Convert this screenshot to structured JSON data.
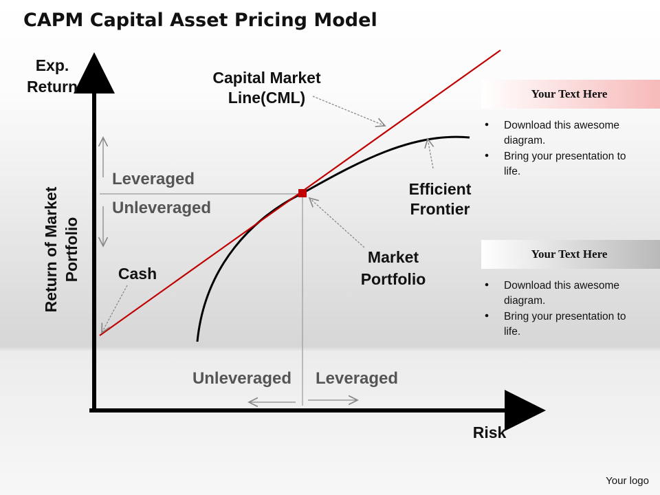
{
  "title": "CAPM Capital Asset Pricing Model",
  "y_axis_label": [
    "Exp.",
    "Return"
  ],
  "y_axis_side_label": [
    "Return of Market",
    "Portfolio"
  ],
  "x_axis_label": "Risk",
  "cml_label": [
    "Capital Market",
    "Line(CML)"
  ],
  "frontier_label": [
    "Efficient",
    "Frontier"
  ],
  "market_label": [
    "Market",
    "Portfolio"
  ],
  "cash_label": "Cash",
  "vertical_labels": {
    "leveraged": "Leveraged",
    "unleveraged": "Unleveraged"
  },
  "horizontal_labels": {
    "unleveraged": "Unleveraged",
    "leveraged": "Leveraged"
  },
  "text_boxes": [
    {
      "heading": "Your Text Here",
      "bullets": [
        "Download this awesome",
        "diagram.",
        "Bring your presentation to",
        "life."
      ]
    },
    {
      "heading": "Your Text Here",
      "bullets": [
        "Download this awesome",
        "diagram.",
        "Bring your presentation to",
        "life."
      ]
    }
  ],
  "logo": "Your logo"
}
